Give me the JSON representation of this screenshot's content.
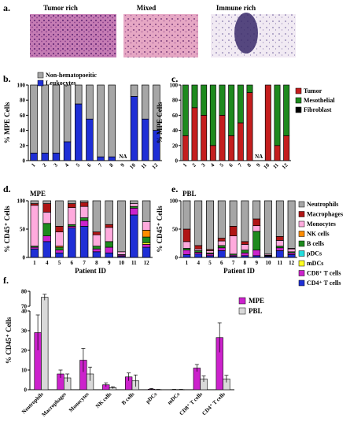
{
  "panel_labels": {
    "a": "a.",
    "b": "b.",
    "c": "c.",
    "d": "d.",
    "e": "e.",
    "f": "f."
  },
  "histology": {
    "captions": [
      "Tumor rich",
      "Mixed",
      "Immune rich"
    ],
    "images": [
      "tumor-rich-histology",
      "mixed-histology",
      "immune-rich-histology"
    ],
    "colors": {
      "stain_light": "#d9a8c9",
      "stain_dark": "#7b3f7a",
      "nucleus": "#3a2a6a"
    }
  },
  "chart_data": [
    {
      "id": "b",
      "type": "bar",
      "stacked": true,
      "title": "",
      "ylabel": "% MPE Cells",
      "xlabel": "",
      "categories": [
        "1",
        "2",
        "3",
        "4",
        "5",
        "6",
        "7",
        "8",
        "9",
        "10",
        "11",
        "12"
      ],
      "na_label": "NA",
      "na_index": 8,
      "ylim": [
        0,
        100
      ],
      "yticks": [
        0,
        20,
        40,
        60,
        80,
        100
      ],
      "legend": {
        "position": "top-left",
        "entries": [
          "Non-hematopoeitic",
          "Leukocytes"
        ]
      },
      "series": [
        {
          "name": "Leukocytes",
          "color": "#1f2fd6",
          "values": [
            10,
            10,
            10,
            25,
            75,
            55,
            5,
            5,
            null,
            85,
            55,
            40
          ]
        },
        {
          "name": "Non-hematopoeitic",
          "color": "#a6a6a6",
          "values": [
            90,
            90,
            90,
            75,
            25,
            45,
            95,
            95,
            null,
            15,
            45,
            60
          ]
        }
      ]
    },
    {
      "id": "c",
      "type": "bar",
      "stacked": true,
      "title": "",
      "ylabel": "% MPE Cells",
      "xlabel": "",
      "categories": [
        "1",
        "2",
        "3",
        "4",
        "5",
        "6",
        "7",
        "8",
        "9",
        "10",
        "11",
        "12"
      ],
      "na_label": "NA",
      "na_index": 8,
      "ylim": [
        0,
        100
      ],
      "yticks": [
        0,
        20,
        40,
        60,
        80,
        100
      ],
      "legend": {
        "position": "right",
        "entries": [
          "Tumor",
          "Mesothelial",
          "Fibroblast"
        ]
      },
      "series": [
        {
          "name": "Tumor",
          "color": "#c41e1e",
          "values": [
            33,
            70,
            60,
            20,
            60,
            33,
            50,
            90,
            null,
            100,
            20,
            33
          ]
        },
        {
          "name": "Mesothelial",
          "color": "#1e8a1e",
          "values": [
            67,
            30,
            40,
            80,
            40,
            67,
            50,
            10,
            null,
            0,
            80,
            67
          ]
        },
        {
          "name": "Fibroblast",
          "color": "#000000",
          "values": [
            0,
            0,
            0,
            0,
            0,
            0,
            0,
            0,
            null,
            0,
            0,
            0
          ]
        }
      ]
    },
    {
      "id": "d",
      "type": "bar",
      "stacked": true,
      "title": "MPE",
      "ylabel": "% CD45⁺ Cells",
      "xlabel": "Patient ID",
      "categories": [
        "1",
        "4",
        "5",
        "6",
        "7",
        "8",
        "9",
        "10",
        "11",
        "12"
      ],
      "ylim": [
        0,
        100
      ],
      "yticks": [
        0,
        50,
        100
      ],
      "series": [
        {
          "name": "CD4⁺ T cells",
          "color": "#1f2fd6",
          "values": [
            15,
            28,
            8,
            52,
            55,
            10,
            8,
            2,
            75,
            18
          ]
        },
        {
          "name": "CD8⁺ T cells",
          "color": "#cc22cc",
          "values": [
            3,
            10,
            5,
            3,
            10,
            5,
            10,
            2,
            12,
            5
          ]
        },
        {
          "name": "mDCs",
          "color": "#ffff22",
          "values": [
            0,
            0,
            0,
            0,
            0,
            0,
            0,
            0,
            0,
            3
          ]
        },
        {
          "name": "pDCs",
          "color": "#22dddd",
          "values": [
            0,
            0,
            0,
            0,
            0,
            0,
            0,
            0,
            0,
            0
          ]
        },
        {
          "name": "B cells",
          "color": "#1e8a1e",
          "values": [
            2,
            22,
            5,
            3,
            5,
            5,
            10,
            1,
            3,
            10
          ]
        },
        {
          "name": "NK cells",
          "color": "#ff8c00",
          "values": [
            0,
            0,
            2,
            0,
            0,
            0,
            0,
            0,
            0,
            12
          ]
        },
        {
          "name": "Monocytes",
          "color": "#ffaadd",
          "values": [
            72,
            20,
            25,
            30,
            20,
            20,
            25,
            5,
            5,
            15
          ]
        },
        {
          "name": "Macrophages",
          "color": "#b01515",
          "values": [
            3,
            15,
            10,
            7,
            7,
            5,
            5,
            0,
            0,
            0
          ]
        },
        {
          "name": "Neutrophils",
          "color": "#a6a6a6",
          "values": [
            5,
            5,
            45,
            5,
            3,
            55,
            42,
            90,
            5,
            37
          ]
        }
      ]
    },
    {
      "id": "e",
      "type": "bar",
      "stacked": true,
      "title": "PBL",
      "ylabel": "% CD45⁺ Cells",
      "xlabel": "Patient ID",
      "categories": [
        "1",
        "4",
        "5",
        "6",
        "7",
        "8",
        "9",
        "10",
        "11",
        "12"
      ],
      "ylim": [
        0,
        100
      ],
      "yticks": [
        0,
        50,
        100
      ],
      "legend": {
        "position": "right",
        "entries": [
          "Neutrophils",
          "Macrophages",
          "Monocytes",
          "NK cells",
          "B cells",
          "pDCs",
          "mDCs",
          "CD8⁺ T cells",
          "CD4⁺ T cells"
        ]
      },
      "series": [
        {
          "name": "CD4⁺ T cells",
          "color": "#1f2fd6",
          "values": [
            5,
            6,
            3,
            12,
            2,
            3,
            3,
            2,
            12,
            5
          ]
        },
        {
          "name": "CD8⁺ T cells",
          "color": "#cc22cc",
          "values": [
            8,
            3,
            3,
            5,
            2,
            5,
            10,
            1,
            5,
            3
          ]
        },
        {
          "name": "mDCs",
          "color": "#ffff22",
          "values": [
            0,
            0,
            0,
            0,
            0,
            0,
            0,
            0,
            0,
            0
          ]
        },
        {
          "name": "pDCs",
          "color": "#22dddd",
          "values": [
            0,
            0,
            0,
            0,
            0,
            0,
            0,
            0,
            0,
            0
          ]
        },
        {
          "name": "B cells",
          "color": "#1e8a1e",
          "values": [
            3,
            3,
            2,
            4,
            2,
            5,
            33,
            1,
            3,
            2
          ]
        },
        {
          "name": "NK cells",
          "color": "#ff8c00",
          "values": [
            0,
            0,
            0,
            0,
            0,
            0,
            0,
            0,
            0,
            0
          ]
        },
        {
          "name": "Monocytes",
          "color": "#ffaadd",
          "values": [
            12,
            3,
            4,
            8,
            32,
            10,
            10,
            2,
            10,
            5
          ]
        },
        {
          "name": "Macrophages",
          "color": "#b01515",
          "values": [
            22,
            6,
            2,
            5,
            17,
            5,
            12,
            0,
            7,
            1
          ]
        },
        {
          "name": "Neutrophils",
          "color": "#a6a6a6",
          "values": [
            50,
            79,
            86,
            66,
            45,
            72,
            32,
            94,
            63,
            84
          ]
        }
      ]
    },
    {
      "id": "f",
      "type": "bar",
      "grouped": true,
      "title": "",
      "ylabel": "% CD45⁺ Cells",
      "xlabel": "",
      "categories": [
        "Neutrophils",
        "Macrophages",
        "Monocytes",
        "NK cells",
        "B cells",
        "pDCs",
        "mDCs",
        "CD8⁺ T cells",
        "CD4⁺ T cells"
      ],
      "ylim": [
        0,
        80
      ],
      "axis_break": [
        40,
        70
      ],
      "yticks": [
        0,
        10,
        20,
        30,
        40,
        70,
        80
      ],
      "legend": {
        "position": "top-right",
        "entries": [
          "MPE",
          "PBL"
        ]
      },
      "series": [
        {
          "name": "MPE",
          "color": "#cc22cc",
          "values": [
            29,
            8,
            15,
            2.5,
            6.5,
            0.3,
            0.1,
            11,
            26.5
          ],
          "errors": [
            9,
            2,
            6,
            1,
            2,
            0.3,
            0.1,
            1.8,
            7.5
          ]
        },
        {
          "name": "PBL",
          "color": "#d9d9d9",
          "values": [
            76,
            6,
            8,
            1,
            4.5,
            0.1,
            0.1,
            5.5,
            5.5
          ],
          "errors": [
            2,
            2,
            3.5,
            0.5,
            3,
            0.1,
            0.1,
            1.5,
            1.8
          ]
        }
      ]
    }
  ]
}
